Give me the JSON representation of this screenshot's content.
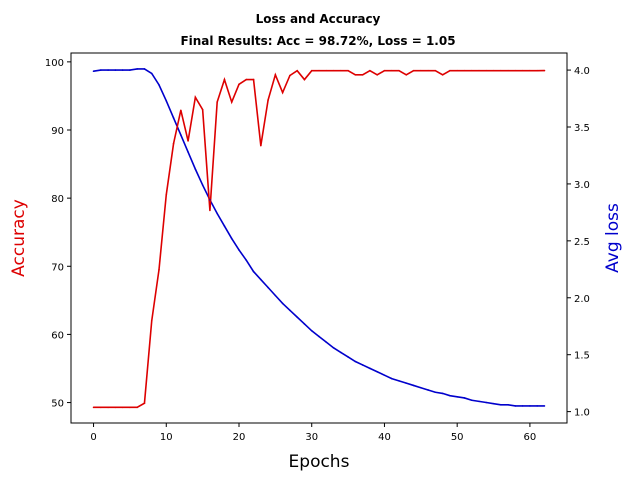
{
  "chart_data": {
    "type": "line",
    "title": "Loss and Accuracy",
    "subtitle": "Final Results: Acc = 98.72%, Loss = 1.05",
    "xlabel": "Epochs",
    "ylabel_left": "Accuracy",
    "ylabel_right": "Avg loss",
    "xlim": [
      -3.1,
      65.1
    ],
    "ylim_left": [
      47.0,
      101.3
    ],
    "ylim_right": [
      0.9,
      4.15
    ],
    "x_ticks": [
      0,
      10,
      20,
      30,
      40,
      50,
      60
    ],
    "y_left_ticks": [
      50,
      60,
      70,
      80,
      90,
      100
    ],
    "y_right_ticks": [
      1.0,
      1.5,
      2.0,
      2.5,
      3.0,
      3.5,
      4.0
    ],
    "grid": false,
    "colors": {
      "accuracy": "#dd0000",
      "loss": "#0000cc"
    },
    "x": [
      0,
      1,
      2,
      3,
      4,
      5,
      6,
      7,
      8,
      9,
      10,
      11,
      12,
      13,
      14,
      15,
      16,
      17,
      18,
      19,
      20,
      21,
      22,
      23,
      24,
      25,
      26,
      27,
      28,
      29,
      30,
      31,
      32,
      33,
      34,
      35,
      36,
      37,
      38,
      39,
      40,
      41,
      42,
      43,
      44,
      45,
      46,
      47,
      48,
      49,
      50,
      51,
      52,
      53,
      54,
      55,
      56,
      57,
      58,
      59,
      60,
      61,
      62
    ],
    "series": [
      {
        "axis": "left",
        "color": "#dd0000",
        "values": [
          49.3,
          49.3,
          49.3,
          49.3,
          49.3,
          49.3,
          49.3,
          49.9,
          62.0,
          69.5,
          80.5,
          88.0,
          92.9,
          88.4,
          94.8,
          93.0,
          78.2,
          94.1,
          97.4,
          94.1,
          96.7,
          97.4,
          97.4,
          87.7,
          94.4,
          98.1,
          95.5,
          98.0,
          98.7,
          97.4,
          98.7,
          98.7,
          98.7,
          98.7,
          98.7,
          98.7,
          98.1,
          98.1,
          98.7,
          98.1,
          98.7,
          98.7,
          98.7,
          98.1,
          98.7,
          98.7,
          98.7,
          98.7,
          98.1,
          98.7,
          98.7,
          98.7,
          98.7,
          98.7,
          98.7,
          98.7,
          98.7,
          98.7,
          98.7,
          98.7,
          98.7,
          98.7,
          98.72
        ]
      },
      {
        "axis": "right",
        "color": "#0000cc",
        "values": [
          3.99,
          4.0,
          4.0,
          4.0,
          4.0,
          4.0,
          4.01,
          4.01,
          3.97,
          3.87,
          3.73,
          3.58,
          3.43,
          3.28,
          3.13,
          2.99,
          2.86,
          2.74,
          2.63,
          2.52,
          2.42,
          2.33,
          2.23,
          2.16,
          2.09,
          2.02,
          1.95,
          1.89,
          1.83,
          1.77,
          1.71,
          1.66,
          1.61,
          1.56,
          1.52,
          1.48,
          1.44,
          1.41,
          1.38,
          1.35,
          1.32,
          1.29,
          1.27,
          1.25,
          1.23,
          1.21,
          1.19,
          1.17,
          1.16,
          1.14,
          1.13,
          1.12,
          1.1,
          1.09,
          1.08,
          1.07,
          1.06,
          1.06,
          1.05,
          1.05,
          1.05,
          1.05,
          1.05
        ]
      }
    ]
  }
}
